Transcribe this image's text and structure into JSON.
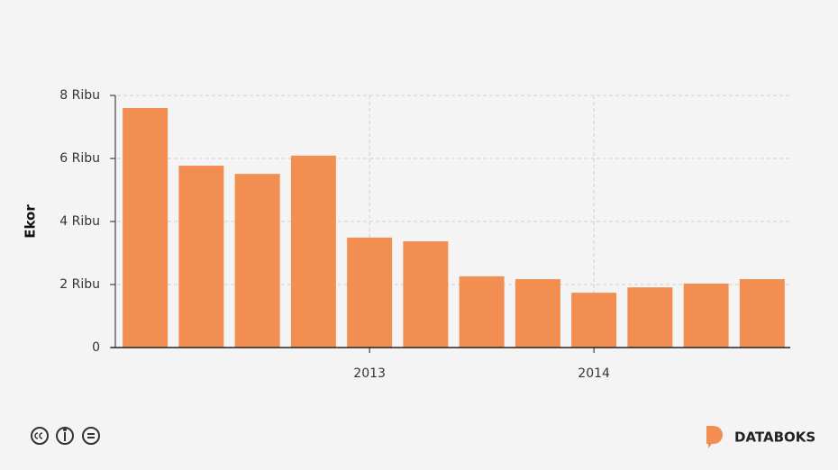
{
  "chart_data": {
    "type": "bar",
    "y_label": "Ekor",
    "categories": [
      null,
      null,
      null,
      null,
      "2013",
      null,
      null,
      null,
      "2014",
      null,
      null,
      null
    ],
    "values": [
      7600,
      5770,
      5510,
      6090,
      3490,
      3370,
      2260,
      2170,
      1740,
      1910,
      2030,
      2170
    ],
    "color": "#f28e52",
    "ylim": [
      0,
      8000
    ],
    "yticks": [
      0,
      {
        "value": 2000,
        "label": "2 Ribu"
      },
      {
        "value": 4000,
        "label": "4 Ribu"
      },
      {
        "value": 6000,
        "label": "6 Ribu"
      },
      {
        "value": 8000,
        "label": "8 Ribu"
      }
    ],
    "grid": true
  },
  "footer": {
    "brand": "DATABOKS"
  }
}
